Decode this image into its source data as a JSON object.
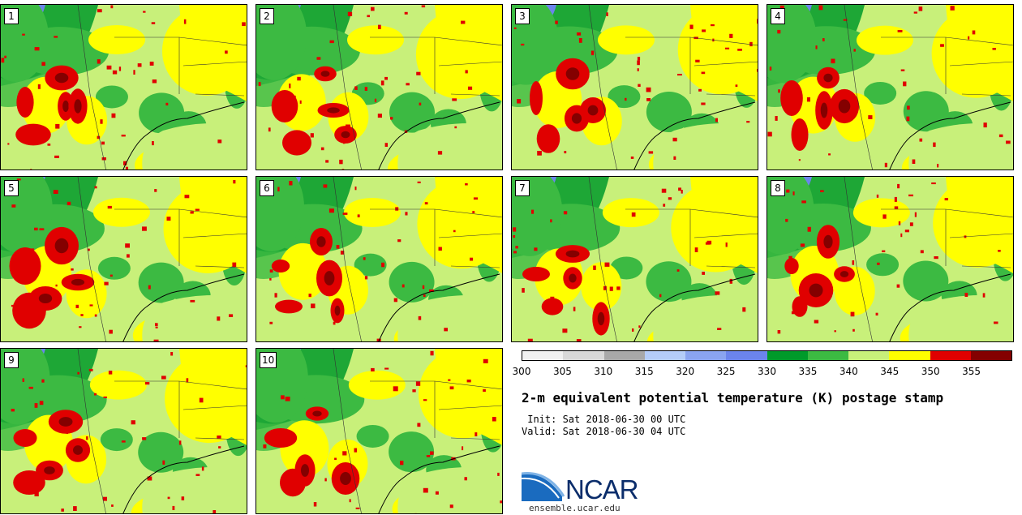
{
  "panels": [
    {
      "label": "1"
    },
    {
      "label": "2"
    },
    {
      "label": "3"
    },
    {
      "label": "4"
    },
    {
      "label": "5"
    },
    {
      "label": "6"
    },
    {
      "label": "7"
    },
    {
      "label": "8"
    },
    {
      "label": "9"
    },
    {
      "label": "10"
    }
  ],
  "colorbar": {
    "colors": [
      "#f0f0f0",
      "#d8d8d8",
      "#a8a8a8",
      "#b4ccf8",
      "#8aa4f0",
      "#6b84ec",
      "#009a2a",
      "#3cba42",
      "#c8f07a",
      "#ffff00",
      "#e00000",
      "#840000"
    ],
    "ticks": [
      "300",
      "305",
      "310",
      "315",
      "320",
      "325",
      "330",
      "335",
      "340",
      "345",
      "350",
      "355"
    ]
  },
  "title": "2-m equivalent potential temperature (K) postage stamp",
  "init_line": " Init: Sat 2018-06-30 00 UTC",
  "valid_line": "Valid: Sat 2018-06-30 04 UTC",
  "logo": {
    "text": "NCAR",
    "url": "ensemble.ucar.edu"
  }
}
